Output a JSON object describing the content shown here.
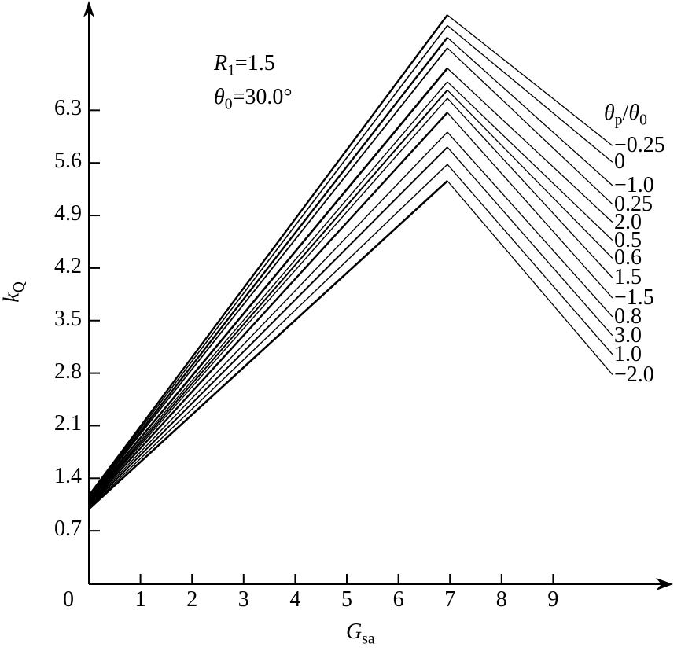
{
  "chart_data": {
    "type": "line",
    "title": "",
    "xlabel": "G_sa",
    "ylabel": "k_Q",
    "xlabel_parts": [
      {
        "t": "G",
        "i": true
      },
      {
        "t": "sa",
        "sub": true
      }
    ],
    "ylabel_parts": [
      {
        "t": "k",
        "i": true
      },
      {
        "t": "Q",
        "sub": true
      }
    ],
    "annotation_lines": [
      {
        "text": "R1=1.5",
        "parts": [
          {
            "t": "R",
            "i": true
          },
          {
            "t": "1",
            "sub": true
          },
          {
            "t": "=1.5"
          }
        ]
      },
      {
        "text": "θ0=30.0°",
        "parts": [
          {
            "t": "θ",
            "i": true
          },
          {
            "t": "0",
            "sub": true
          },
          {
            "t": "=30.0°"
          }
        ]
      }
    ],
    "legend_title": {
      "text": "θp/θ0",
      "parts": [
        {
          "t": "θ",
          "i": true
        },
        {
          "t": "p",
          "sub": true
        },
        {
          "t": "/"
        },
        {
          "t": "θ",
          "i": true
        },
        {
          "t": "0",
          "sub": true
        }
      ]
    },
    "origin_label": "0",
    "x_ticks": [
      1,
      2,
      3,
      4,
      5,
      6,
      7,
      8,
      9
    ],
    "y_ticks": [
      0.7,
      1.4,
      2.1,
      2.8,
      3.5,
      4.2,
      4.9,
      5.6,
      6.3
    ],
    "xlim": [
      0,
      11.3
    ],
    "ylim": [
      0,
      7.75
    ],
    "x": [
      0,
      6.95,
      10.15
    ],
    "x_meaning": "k_Q sampled at G_sa = 0, at the peak G_sa ≈ 7, and at the curve end G_sa ≈ 10.15",
    "series": [
      {
        "label": "−0.25",
        "theta_ratio": -0.25,
        "values": [
          1.17,
          7.57,
          5.83
        ]
      },
      {
        "label": "0",
        "theta_ratio": 0,
        "values": [
          1.155,
          7.43,
          5.61
        ]
      },
      {
        "label": "−1.0",
        "theta_ratio": -1.0,
        "values": [
          1.14,
          7.27,
          5.3
        ]
      },
      {
        "label": "0.25",
        "theta_ratio": 0.25,
        "values": [
          1.125,
          7.13,
          5.05
        ]
      },
      {
        "label": "2.0",
        "theta_ratio": 2.0,
        "values": [
          1.11,
          6.86,
          4.81
        ]
      },
      {
        "label": "0.5",
        "theta_ratio": 0.5,
        "values": [
          1.095,
          6.68,
          4.57
        ]
      },
      {
        "label": "0.6",
        "theta_ratio": 0.6,
        "values": [
          1.08,
          6.57,
          4.33
        ]
      },
      {
        "label": "1.5",
        "theta_ratio": 1.5,
        "values": [
          1.065,
          6.46,
          4.07
        ]
      },
      {
        "label": "−1.5",
        "theta_ratio": -1.5,
        "values": [
          1.05,
          6.27,
          3.8
        ]
      },
      {
        "label": "0.8",
        "theta_ratio": 0.8,
        "values": [
          1.035,
          6.01,
          3.55
        ]
      },
      {
        "label": "3.0",
        "theta_ratio": 3.0,
        "values": [
          1.02,
          5.81,
          3.3
        ]
      },
      {
        "label": "1.0",
        "theta_ratio": 1.0,
        "values": [
          1.005,
          5.58,
          3.05
        ]
      },
      {
        "label": "−2.0",
        "theta_ratio": -2.0,
        "values": [
          0.99,
          5.36,
          2.78
        ]
      }
    ],
    "legend_position": "right",
    "grid": false,
    "colors": {
      "line": "#000000",
      "background": "#ffffff",
      "text": "#000000"
    }
  }
}
